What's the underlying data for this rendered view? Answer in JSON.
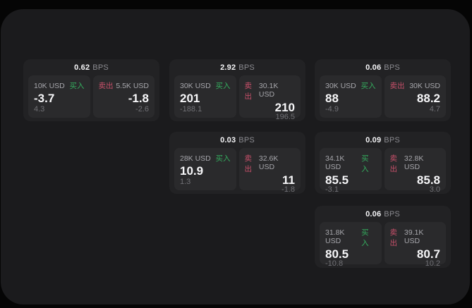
{
  "app": {
    "background_color": "#050505",
    "surface_color": "#1b1b1d",
    "card_color": "#222224",
    "panel_color": "#2a2a2c",
    "buy_color": "#34ad5e",
    "sell_color": "#c8506a"
  },
  "labels": {
    "bps_unit": "BPS",
    "buy": "买入",
    "sell": "卖出"
  },
  "cards": [
    {
      "spread": "0.62",
      "buy": {
        "amount": "10K USD",
        "price": "-3.7",
        "sub": "4.3"
      },
      "sell": {
        "amount": "5.5K USD",
        "price": "-1.8",
        "sub": "-2.6"
      }
    },
    {
      "spread": "2.92",
      "buy": {
        "amount": "30K USD",
        "price": "201",
        "sub": "-188.1"
      },
      "sell": {
        "amount": "30.1K USD",
        "price": "210",
        "sub": "196.5"
      }
    },
    {
      "spread": "0.06",
      "buy": {
        "amount": "30K USD",
        "price": "88",
        "sub": "-4.9"
      },
      "sell": {
        "amount": "30K USD",
        "price": "88.2",
        "sub": "4.7"
      }
    },
    {
      "spread": "0.03",
      "buy": {
        "amount": "28K USD",
        "price": "10.9",
        "sub": "1.3"
      },
      "sell": {
        "amount": "32.6K USD",
        "price": "11",
        "sub": "-1.8"
      }
    },
    {
      "spread": "0.09",
      "buy": {
        "amount": "34.1K USD",
        "price": "85.5",
        "sub": "-3.1"
      },
      "sell": {
        "amount": "32.8K USD",
        "price": "85.8",
        "sub": "3.0"
      }
    },
    {
      "spread": "0.06",
      "buy": {
        "amount": "31.8K USD",
        "price": "80.5",
        "sub": "-10.8"
      },
      "sell": {
        "amount": "39.1K USD",
        "price": "80.7",
        "sub": "10.2"
      }
    }
  ]
}
